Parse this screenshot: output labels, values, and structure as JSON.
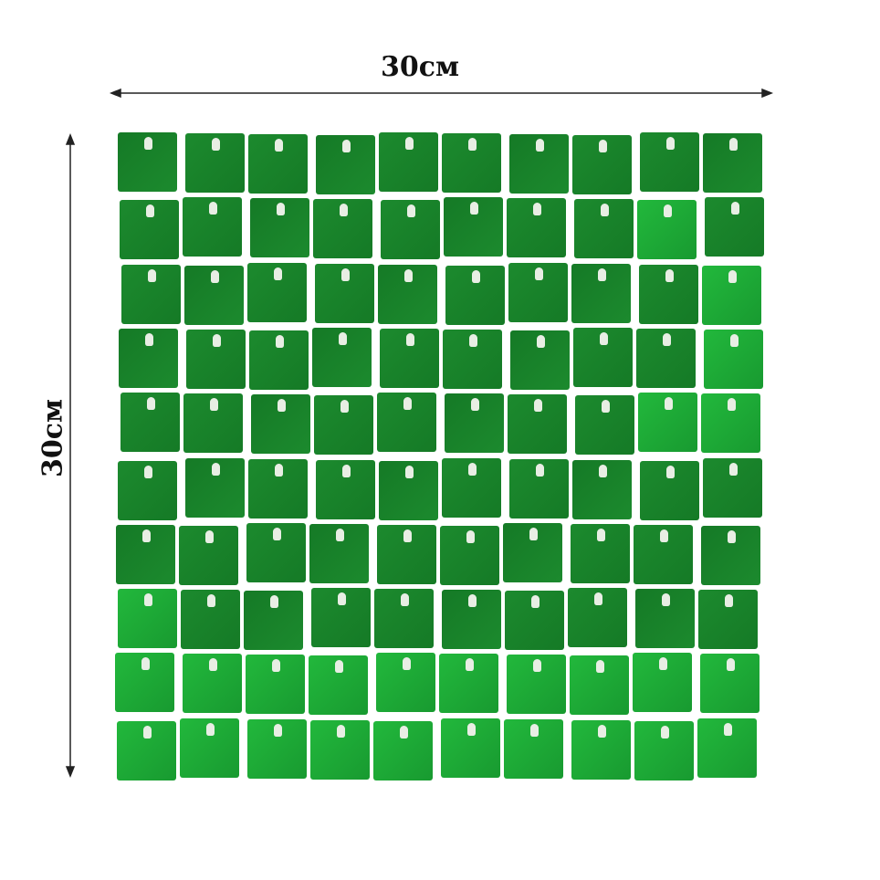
{
  "dimensions": {
    "width_label": "30см",
    "height_label": "30см"
  },
  "panel": {
    "rows": 10,
    "columns": 10,
    "colors": {
      "main": "#1c8a2e",
      "dark": "#157a26",
      "bright": "#22b83c",
      "hole": "#e8eee4"
    }
  }
}
